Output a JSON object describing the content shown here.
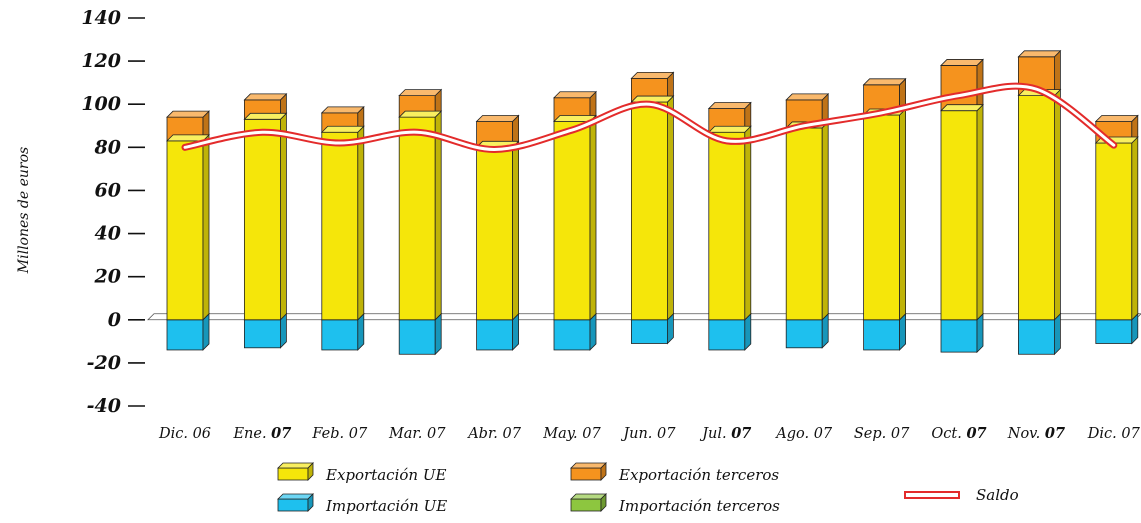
{
  "chart_data": {
    "type": "bar",
    "ylabel": "Millones de euros",
    "ylim": [
      -40,
      140
    ],
    "yticks": [
      "140",
      "120",
      "100",
      "80",
      "60",
      "40",
      "20",
      "0",
      "-20",
      "-40"
    ],
    "ytick_values": [
      140,
      120,
      100,
      80,
      60,
      40,
      20,
      0,
      -20,
      -40
    ],
    "categories": [
      {
        "prefix": "Dic.",
        "year": "06",
        "bold": false
      },
      {
        "prefix": "Ene.",
        "year": "07",
        "bold": true
      },
      {
        "prefix": "Feb.",
        "year": "07",
        "bold": false
      },
      {
        "prefix": "Mar.",
        "year": "07",
        "bold": false
      },
      {
        "prefix": "Abr.",
        "year": "07",
        "bold": false
      },
      {
        "prefix": "May.",
        "year": "07",
        "bold": false
      },
      {
        "prefix": "Jun.",
        "year": "07",
        "bold": false
      },
      {
        "prefix": "Jul.",
        "year": "07",
        "bold": true
      },
      {
        "prefix": "Ago.",
        "year": "07",
        "bold": false
      },
      {
        "prefix": "Sep.",
        "year": "07",
        "bold": false
      },
      {
        "prefix": "Oct.",
        "year": "07",
        "bold": true
      },
      {
        "prefix": "Nov.",
        "year": "07",
        "bold": true
      },
      {
        "prefix": "Dic.",
        "year": "07",
        "bold": false
      }
    ],
    "series": [
      {
        "name": "Exportación UE",
        "color": "#f5e60a",
        "values": [
          83,
          93,
          87,
          94,
          80,
          92,
          101,
          87,
          89,
          95,
          97,
          104,
          82
        ]
      },
      {
        "name": "Exportación terceros",
        "color": "#f5931e",
        "values": [
          11,
          9,
          9,
          10,
          12,
          11,
          11,
          11,
          13,
          14,
          21,
          18,
          10
        ]
      },
      {
        "name": "Importación UE",
        "color": "#1ec0ee",
        "values": [
          -14,
          -13,
          -14,
          -16,
          -14,
          -14,
          -11,
          -14,
          -13,
          -14,
          -15,
          -16,
          -11
        ]
      },
      {
        "name": "Importación terceros",
        "color": "#8dc63f",
        "values": [
          0,
          0,
          0,
          0,
          0,
          0,
          0,
          0,
          0,
          0,
          0,
          0,
          0
        ]
      },
      {
        "name": "Saldo",
        "color": "#e32b2b",
        "kind": "line",
        "values": [
          80,
          87,
          82,
          87,
          79,
          88,
          100,
          83,
          90,
          96,
          104,
          107,
          81
        ]
      }
    ],
    "grid": false,
    "legend_position": "bottom"
  }
}
